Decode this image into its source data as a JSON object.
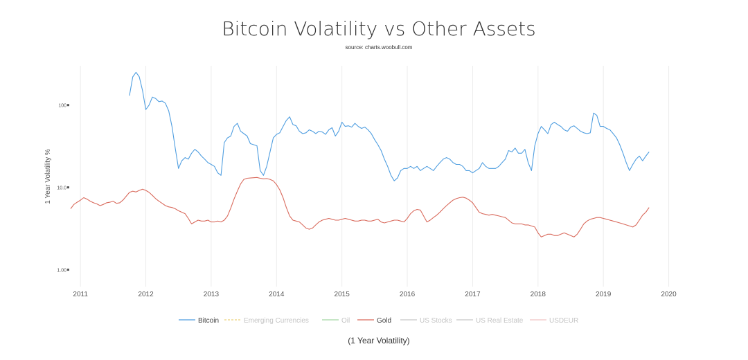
{
  "chart_data": {
    "type": "line",
    "title": "Bitcoin Volatility vs Other Assets",
    "subtitle": "source: charts.woobull.com",
    "ylabel": "1 Year Volatility %",
    "xlabel": "(1 Year Volatility)",
    "y_scale": "log",
    "ylim": [
      0.7,
      300
    ],
    "y_ticks": [
      1,
      10,
      100
    ],
    "y_tick_labels": [
      "1.00",
      "10.0",
      "100"
    ],
    "xlim": [
      2010.85,
      2020.1
    ],
    "x_ticks": [
      2011,
      2012,
      2013,
      2014,
      2015,
      2016,
      2017,
      2018,
      2019,
      2020
    ],
    "x_tick_labels": [
      "2011",
      "2012",
      "2013",
      "2014",
      "2015",
      "2016",
      "2017",
      "2018",
      "2019",
      "2020"
    ],
    "grid": "vertical",
    "legend_position": "bottom",
    "series": [
      {
        "name": "Bitcoin",
        "color": "#4f9ee0",
        "visible": true,
        "x": [
          2011.75,
          2011.8,
          2011.85,
          2011.9,
          2011.95,
          2012.0,
          2012.05,
          2012.1,
          2012.15,
          2012.2,
          2012.25,
          2012.3,
          2012.35,
          2012.4,
          2012.45,
          2012.5,
          2012.55,
          2012.6,
          2012.65,
          2012.7,
          2012.75,
          2012.8,
          2012.85,
          2012.9,
          2012.95,
          2013.0,
          2013.05,
          2013.1,
          2013.15,
          2013.2,
          2013.25,
          2013.3,
          2013.35,
          2013.4,
          2013.45,
          2013.5,
          2013.55,
          2013.6,
          2013.65,
          2013.7,
          2013.75,
          2013.8,
          2013.85,
          2013.9,
          2013.95,
          2014.0,
          2014.05,
          2014.1,
          2014.15,
          2014.2,
          2014.25,
          2014.3,
          2014.35,
          2014.4,
          2014.45,
          2014.5,
          2014.55,
          2014.6,
          2014.65,
          2014.7,
          2014.75,
          2014.8,
          2014.85,
          2014.9,
          2014.95,
          2015.0,
          2015.05,
          2015.1,
          2015.15,
          2015.2,
          2015.25,
          2015.3,
          2015.35,
          2015.4,
          2015.45,
          2015.5,
          2015.55,
          2015.6,
          2015.65,
          2015.7,
          2015.75,
          2015.8,
          2015.85,
          2015.9,
          2015.95,
          2016.0,
          2016.05,
          2016.1,
          2016.15,
          2016.2,
          2016.25,
          2016.3,
          2016.35,
          2016.4,
          2016.45,
          2016.5,
          2016.55,
          2016.6,
          2016.65,
          2016.7,
          2016.75,
          2016.8,
          2016.85,
          2016.9,
          2016.95,
          2017.0,
          2017.05,
          2017.1,
          2017.15,
          2017.2,
          2017.25,
          2017.3,
          2017.35,
          2017.4,
          2017.45,
          2017.5,
          2017.55,
          2017.6,
          2017.65,
          2017.7,
          2017.75,
          2017.8,
          2017.85,
          2017.9,
          2017.95,
          2018.0,
          2018.05,
          2018.1,
          2018.15,
          2018.2,
          2018.25,
          2018.3,
          2018.35,
          2018.4,
          2018.45,
          2018.5,
          2018.55,
          2018.6,
          2018.65,
          2018.7,
          2018.75,
          2018.8,
          2018.85,
          2018.9,
          2018.95,
          2019.0,
          2019.05,
          2019.1,
          2019.15,
          2019.2,
          2019.25,
          2019.3,
          2019.35,
          2019.4,
          2019.45,
          2019.5,
          2019.55,
          2019.6,
          2019.65,
          2019.7
        ],
        "values": [
          130,
          220,
          250,
          220,
          150,
          88,
          100,
          125,
          120,
          110,
          112,
          105,
          85,
          55,
          30,
          17,
          21,
          23,
          22,
          26,
          29,
          27,
          24,
          22,
          20,
          19,
          18,
          15,
          14,
          35,
          40,
          42,
          55,
          60,
          48,
          45,
          42,
          34,
          33,
          32,
          16,
          14,
          18,
          27,
          40,
          44,
          46,
          55,
          65,
          72,
          58,
          56,
          48,
          45,
          46,
          50,
          48,
          45,
          48,
          47,
          44,
          50,
          53,
          42,
          48,
          62,
          55,
          56,
          54,
          60,
          55,
          52,
          54,
          50,
          45,
          38,
          33,
          28,
          22,
          18,
          14,
          12,
          13,
          16,
          17,
          17,
          18,
          17,
          18,
          16,
          17,
          18,
          17,
          16,
          18,
          20,
          22,
          23,
          22,
          20,
          19,
          19,
          18,
          16,
          16,
          15,
          16,
          17,
          20,
          18,
          17,
          17,
          17,
          18,
          20,
          22,
          28,
          27,
          30,
          26,
          26,
          29,
          20,
          16,
          32,
          45,
          55,
          50,
          45,
          58,
          62,
          58,
          55,
          50,
          48,
          54,
          56,
          52,
          48,
          46,
          45,
          46,
          80,
          75,
          55,
          55,
          52,
          50,
          45,
          40,
          33,
          26,
          20,
          16,
          19,
          22,
          24,
          21,
          24,
          27
        ]
      },
      {
        "name": "Emerging Currencies",
        "color": "#ecd27a",
        "visible": false,
        "dashed": true
      },
      {
        "name": "Oil",
        "color": "#a3d6a3",
        "visible": false
      },
      {
        "name": "Gold",
        "color": "#d96a5c",
        "visible": true,
        "x": [
          2010.85,
          2010.9,
          2010.95,
          2011.0,
          2011.05,
          2011.1,
          2011.15,
          2011.2,
          2011.25,
          2011.3,
          2011.35,
          2011.4,
          2011.45,
          2011.5,
          2011.55,
          2011.6,
          2011.65,
          2011.7,
          2011.75,
          2011.8,
          2011.85,
          2011.9,
          2011.95,
          2012.0,
          2012.05,
          2012.1,
          2012.15,
          2012.2,
          2012.25,
          2012.3,
          2012.35,
          2012.4,
          2012.45,
          2012.5,
          2012.55,
          2012.6,
          2012.65,
          2012.7,
          2012.75,
          2012.8,
          2012.85,
          2012.9,
          2012.95,
          2013.0,
          2013.05,
          2013.1,
          2013.15,
          2013.2,
          2013.25,
          2013.3,
          2013.35,
          2013.4,
          2013.45,
          2013.5,
          2013.55,
          2013.6,
          2013.65,
          2013.7,
          2013.75,
          2013.8,
          2013.85,
          2013.9,
          2013.95,
          2014.0,
          2014.05,
          2014.1,
          2014.15,
          2014.2,
          2014.25,
          2014.3,
          2014.35,
          2014.4,
          2014.45,
          2014.5,
          2014.55,
          2014.6,
          2014.65,
          2014.7,
          2014.75,
          2014.8,
          2014.85,
          2014.9,
          2014.95,
          2015.0,
          2015.05,
          2015.1,
          2015.15,
          2015.2,
          2015.25,
          2015.3,
          2015.35,
          2015.4,
          2015.45,
          2015.5,
          2015.55,
          2015.6,
          2015.65,
          2015.7,
          2015.75,
          2015.8,
          2015.85,
          2015.9,
          2015.95,
          2016.0,
          2016.05,
          2016.1,
          2016.15,
          2016.2,
          2016.25,
          2016.3,
          2016.35,
          2016.4,
          2016.45,
          2016.5,
          2016.55,
          2016.6,
          2016.65,
          2016.7,
          2016.75,
          2016.8,
          2016.85,
          2016.9,
          2016.95,
          2017.0,
          2017.05,
          2017.1,
          2017.15,
          2017.2,
          2017.25,
          2017.3,
          2017.35,
          2017.4,
          2017.45,
          2017.5,
          2017.55,
          2017.6,
          2017.65,
          2017.7,
          2017.75,
          2017.8,
          2017.85,
          2017.9,
          2017.95,
          2018.0,
          2018.05,
          2018.1,
          2018.15,
          2018.2,
          2018.25,
          2018.3,
          2018.35,
          2018.4,
          2018.45,
          2018.5,
          2018.55,
          2018.6,
          2018.65,
          2018.7,
          2018.75,
          2018.8,
          2018.85,
          2018.9,
          2018.95,
          2019.0,
          2019.05,
          2019.1,
          2019.15,
          2019.2,
          2019.25,
          2019.3,
          2019.35,
          2019.4,
          2019.45,
          2019.5,
          2019.55,
          2019.6,
          2019.65,
          2019.7
        ],
        "values": [
          5.5,
          6.2,
          6.6,
          7.0,
          7.5,
          7.2,
          6.8,
          6.5,
          6.3,
          6.0,
          6.2,
          6.5,
          6.6,
          6.8,
          6.4,
          6.5,
          7.0,
          7.8,
          8.7,
          9.0,
          8.8,
          9.2,
          9.5,
          9.2,
          8.7,
          8.0,
          7.3,
          6.8,
          6.4,
          6.0,
          5.8,
          5.7,
          5.5,
          5.2,
          5.0,
          4.8,
          4.2,
          3.6,
          3.8,
          4.0,
          3.9,
          3.9,
          4.0,
          3.8,
          3.8,
          3.9,
          3.8,
          4.0,
          4.5,
          5.6,
          7.2,
          9.0,
          11.0,
          12.5,
          12.9,
          13.0,
          13.1,
          13.2,
          12.9,
          12.7,
          12.8,
          12.5,
          12.0,
          10.8,
          9.3,
          7.5,
          5.7,
          4.5,
          4.0,
          3.9,
          3.8,
          3.5,
          3.2,
          3.1,
          3.2,
          3.5,
          3.8,
          4.0,
          4.1,
          4.2,
          4.1,
          4.0,
          4.0,
          4.1,
          4.2,
          4.1,
          4.0,
          3.9,
          3.9,
          4.0,
          4.0,
          3.9,
          3.9,
          4.0,
          4.1,
          3.8,
          3.7,
          3.8,
          3.9,
          4.0,
          4.0,
          3.9,
          3.8,
          4.2,
          4.8,
          5.2,
          5.4,
          5.3,
          4.5,
          3.8,
          4.0,
          4.3,
          4.6,
          5.0,
          5.5,
          6.0,
          6.5,
          7.0,
          7.3,
          7.5,
          7.6,
          7.4,
          7.0,
          6.5,
          5.7,
          5.0,
          4.8,
          4.7,
          4.6,
          4.7,
          4.6,
          4.5,
          4.4,
          4.3,
          4.0,
          3.7,
          3.6,
          3.6,
          3.6,
          3.5,
          3.5,
          3.4,
          3.3,
          2.8,
          2.5,
          2.6,
          2.7,
          2.7,
          2.6,
          2.6,
          2.7,
          2.8,
          2.7,
          2.6,
          2.5,
          2.7,
          3.1,
          3.6,
          3.9,
          4.1,
          4.2,
          4.3,
          4.3,
          4.2,
          4.1,
          4.0,
          3.9,
          3.8,
          3.7,
          3.6,
          3.5,
          3.4,
          3.3,
          3.5,
          4.0,
          4.6,
          5.0,
          5.7
        ]
      },
      {
        "name": "US Stocks",
        "color": "#c8c8c8",
        "visible": false
      },
      {
        "name": "US Real Estate",
        "color": "#c8c8c8",
        "visible": false
      },
      {
        "name": "USDEUR",
        "color": "#f0c4c4",
        "visible": false
      }
    ]
  }
}
